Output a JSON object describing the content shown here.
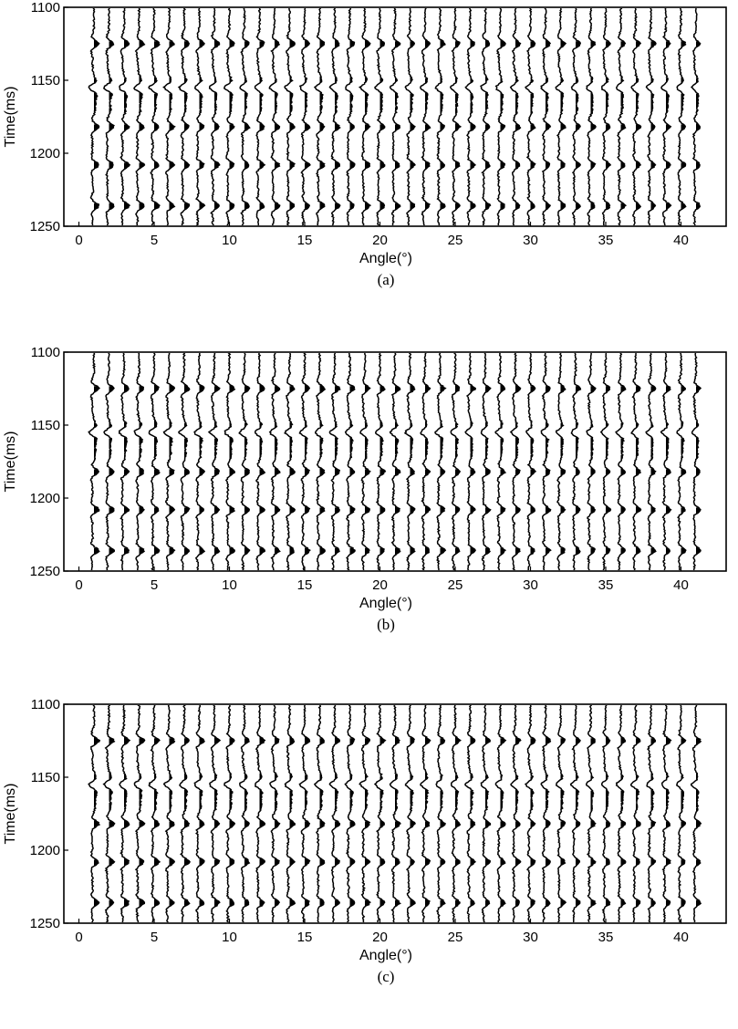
{
  "chart_data": [
    {
      "type": "line",
      "subtype": "seismic-wiggle-traces",
      "caption": "(a)",
      "xlabel": "Angle(°)",
      "ylabel": "Time(ms)",
      "xlim": [
        -1,
        43
      ],
      "ylim": [
        1100,
        1250
      ],
      "y_reversed": true,
      "x_ticks": [
        0,
        5,
        10,
        15,
        20,
        25,
        30,
        35,
        40
      ],
      "y_ticks": [
        1100,
        1150,
        1200,
        1250
      ],
      "trace_angles": [
        1,
        2,
        3,
        4,
        5,
        6,
        7,
        8,
        9,
        10,
        11,
        12,
        13,
        14,
        15,
        16,
        17,
        18,
        19,
        20,
        21,
        22,
        23,
        24,
        25,
        26,
        27,
        28,
        29,
        30,
        31,
        32,
        33,
        34,
        35,
        36,
        37,
        38,
        39,
        40,
        41
      ],
      "event_times": [
        1125,
        1155,
        1182,
        1208,
        1236
      ],
      "trace_color": "#000000",
      "grid": false
    },
    {
      "type": "line",
      "subtype": "seismic-wiggle-traces",
      "caption": "(b)",
      "xlabel": "Angle(°)",
      "ylabel": "Time(ms)",
      "xlim": [
        -1,
        43
      ],
      "ylim": [
        1100,
        1250
      ],
      "y_reversed": true,
      "x_ticks": [
        0,
        5,
        10,
        15,
        20,
        25,
        30,
        35,
        40
      ],
      "y_ticks": [
        1100,
        1150,
        1200,
        1250
      ],
      "trace_angles": [
        1,
        2,
        3,
        4,
        5,
        6,
        7,
        8,
        9,
        10,
        11,
        12,
        13,
        14,
        15,
        16,
        17,
        18,
        19,
        20,
        21,
        22,
        23,
        24,
        25,
        26,
        27,
        28,
        29,
        30,
        31,
        32,
        33,
        34,
        35,
        36,
        37,
        38,
        39,
        40,
        41
      ],
      "event_times": [
        1125,
        1155,
        1182,
        1208,
        1236
      ],
      "trace_color": "#000000",
      "grid": false
    },
    {
      "type": "line",
      "subtype": "seismic-wiggle-traces",
      "caption": "(c)",
      "xlabel": "Angle(°)",
      "ylabel": "Time(ms)",
      "xlim": [
        -1,
        43
      ],
      "ylim": [
        1100,
        1250
      ],
      "y_reversed": true,
      "x_ticks": [
        0,
        5,
        10,
        15,
        20,
        25,
        30,
        35,
        40
      ],
      "y_ticks": [
        1100,
        1150,
        1200,
        1250
      ],
      "trace_angles": [
        1,
        2,
        3,
        4,
        5,
        6,
        7,
        8,
        9,
        10,
        11,
        12,
        13,
        14,
        15,
        16,
        17,
        18,
        19,
        20,
        21,
        22,
        23,
        24,
        25,
        26,
        27,
        28,
        29,
        30,
        31,
        32,
        33,
        34,
        35,
        36,
        37,
        38,
        39,
        40,
        41
      ],
      "event_times": [
        1125,
        1155,
        1182,
        1208,
        1236
      ],
      "trace_color": "#000000",
      "grid": false
    }
  ]
}
